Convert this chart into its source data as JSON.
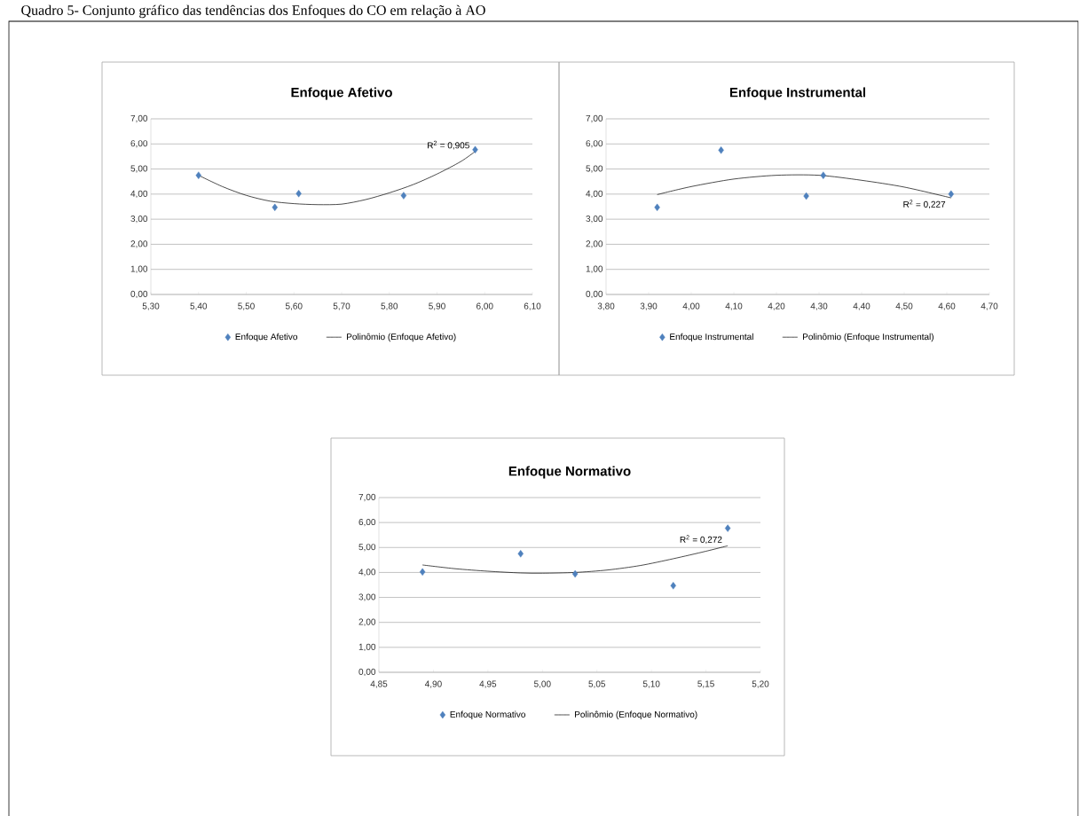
{
  "chart_data": [
    {
      "type": "scatter",
      "title": "Enfoque Afetivo",
      "marker": "diamond",
      "grid": "y",
      "legend": "bottom",
      "xlim": [
        5.3,
        6.1
      ],
      "xticks": [
        {
          "value": 5.3,
          "label": "5,30"
        },
        {
          "value": 5.4,
          "label": "5,40"
        },
        {
          "value": 5.5,
          "label": "5,50"
        },
        {
          "value": 5.6,
          "label": "5,60"
        },
        {
          "value": 5.7,
          "label": "5,70"
        },
        {
          "value": 5.8,
          "label": "5,80"
        },
        {
          "value": 5.9,
          "label": "5,90"
        },
        {
          "value": 6.0,
          "label": "6,00"
        },
        {
          "value": 6.1,
          "label": "6,10"
        }
      ],
      "ylim": [
        0,
        7
      ],
      "yticks": [
        {
          "value": 0,
          "label": "0,00"
        },
        {
          "value": 1,
          "label": "1,00"
        },
        {
          "value": 2,
          "label": "2,00"
        },
        {
          "value": 3,
          "label": "3,00"
        },
        {
          "value": 4,
          "label": "4,00"
        },
        {
          "value": 5,
          "label": "5,00"
        },
        {
          "value": 6,
          "label": "6,00"
        },
        {
          "value": 7,
          "label": "7,00"
        }
      ],
      "series": [
        {
          "name": "Enfoque Afetivo",
          "color": "#4f81bd",
          "x": [
            5.4,
            5.56,
            5.61,
            5.83,
            5.98
          ],
          "values": [
            4.75,
            3.47,
            4.02,
            3.94,
            5.77
          ]
        },
        {
          "name": "Polinômio (Enfoque Afetivo)",
          "type": "line",
          "marker": "none",
          "color": "#000000",
          "x": [
            5.4,
            5.45,
            5.5,
            5.55,
            5.6,
            5.65,
            5.7,
            5.75,
            5.8,
            5.85,
            5.9,
            5.95,
            5.98
          ],
          "values": [
            4.75,
            4.3,
            3.95,
            3.72,
            3.62,
            3.58,
            3.6,
            3.78,
            4.05,
            4.38,
            4.8,
            5.3,
            5.7
          ]
        }
      ],
      "annotations": [
        "Quadro 5- Conjunto gráfico das tendências dos Enfoques do CO em relação à AO",
        "R$^{2}$ = 0,905"
      ]
    },
    {
      "type": "scatter",
      "title": "Enfoque Instrumental",
      "marker": "diamond",
      "grid": "y",
      "legend": "bottom",
      "xlim": [
        3.8,
        4.7
      ],
      "xticks": [
        {
          "value": 3.8,
          "label": "3,80"
        },
        {
          "value": 3.9,
          "label": "3,90"
        },
        {
          "value": 4.0,
          "label": "4,00"
        },
        {
          "value": 4.1,
          "label": "4,10"
        },
        {
          "value": 4.2,
          "label": "4,20"
        },
        {
          "value": 4.3,
          "label": "4,30"
        },
        {
          "value": 4.4,
          "label": "4,40"
        },
        {
          "value": 4.5,
          "label": "4,50"
        },
        {
          "value": 4.6,
          "label": "4,60"
        },
        {
          "value": 4.7,
          "label": "4,70"
        }
      ],
      "ylim": [
        0,
        7
      ],
      "yticks": [
        {
          "value": 0,
          "label": "0,00"
        },
        {
          "value": 1,
          "label": "1,00"
        },
        {
          "value": 2,
          "label": "2,00"
        },
        {
          "value": 3,
          "label": "3,00"
        },
        {
          "value": 4,
          "label": "4,00"
        },
        {
          "value": 5,
          "label": "5,00"
        },
        {
          "value": 6,
          "label": "6,00"
        },
        {
          "value": 7,
          "label": "7,00"
        }
      ],
      "series": [
        {
          "name": "Enfoque Instrumental",
          "color": "#4f81bd",
          "x": [
            3.92,
            4.07,
            4.27,
            4.31,
            4.61
          ],
          "values": [
            3.47,
            5.75,
            3.92,
            4.75,
            4.0
          ]
        },
        {
          "name": "Polinômio (Enfoque Instrumental)",
          "type": "line",
          "marker": "none",
          "color": "#000000",
          "x": [
            3.92,
            4.0,
            4.1,
            4.2,
            4.3,
            4.4,
            4.5,
            4.61
          ],
          "values": [
            3.98,
            4.3,
            4.6,
            4.75,
            4.75,
            4.55,
            4.28,
            3.85
          ]
        }
      ],
      "annotations": [
        "R$^{2}$ = 0,227"
      ]
    },
    {
      "type": "scatter",
      "title": "Enfoque Normativo",
      "marker": "diamond",
      "grid": "y",
      "legend": "bottom",
      "xlim": [
        4.85,
        5.2
      ],
      "xticks": [
        {
          "value": 4.85,
          "label": "4,85"
        },
        {
          "value": 4.9,
          "label": "4,90"
        },
        {
          "value": 4.95,
          "label": "4,95"
        },
        {
          "value": 5.0,
          "label": "5,00"
        },
        {
          "value": 5.05,
          "label": "5,05"
        },
        {
          "value": 5.1,
          "label": "5,10"
        },
        {
          "value": 5.15,
          "label": "5,15"
        },
        {
          "value": 5.2,
          "label": "5,20"
        }
      ],
      "ylim": [
        0,
        7
      ],
      "yticks": [
        {
          "value": 0,
          "label": "0,00"
        },
        {
          "value": 1,
          "label": "1,00"
        },
        {
          "value": 2,
          "label": "2,00"
        },
        {
          "value": 3,
          "label": "3,00"
        },
        {
          "value": 4,
          "label": "4,00"
        },
        {
          "value": 5,
          "label": "5,00"
        },
        {
          "value": 6,
          "label": "6,00"
        },
        {
          "value": 7,
          "label": "7,00"
        }
      ],
      "series": [
        {
          "name": "Enfoque Normativo",
          "color": "#4f81bd",
          "x": [
            4.89,
            4.98,
            5.03,
            5.12,
            5.17
          ],
          "values": [
            4.02,
            4.75,
            3.94,
            3.47,
            5.77
          ]
        },
        {
          "name": "Polinômio (Enfoque Normativo)",
          "type": "line",
          "marker": "none",
          "color": "#000000",
          "x": [
            4.89,
            4.92,
            4.95,
            4.98,
            5.0,
            5.03,
            5.06,
            5.09,
            5.12,
            5.15,
            5.17
          ],
          "values": [
            4.3,
            4.15,
            4.05,
            3.98,
            3.97,
            4.0,
            4.1,
            4.28,
            4.55,
            4.85,
            5.07
          ]
        }
      ],
      "annotations": [
        "R$^{2}$ = 0,272"
      ]
    }
  ]
}
